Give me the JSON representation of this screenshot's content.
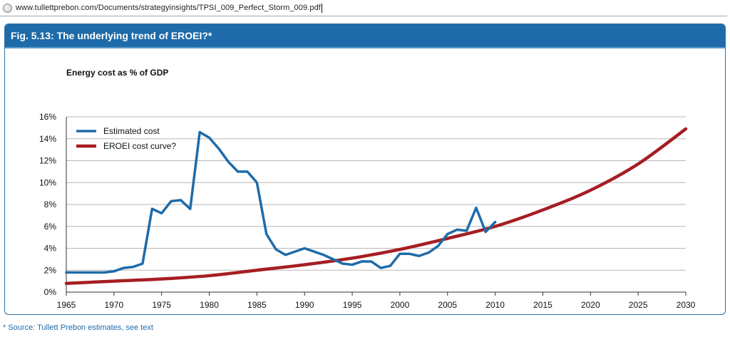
{
  "browser": {
    "url": "www.tullettprebon.com/Documents/strategyinsights/TPSI_009_Perfect_Storm_009.pdf"
  },
  "figure": {
    "title": "Fig. 5.13: The underlying trend of EROEI?*",
    "source_note": "* Source: Tullett Prebon estimates, see text"
  },
  "colors": {
    "header": "#1f6ba9",
    "estimated_cost": "#1f6ba9",
    "eroei_curve": "#a51e22"
  },
  "chart_data": {
    "type": "line",
    "ylabel": "Energy cost as % of GDP",
    "xlim": [
      1965,
      2030
    ],
    "ylim": [
      0,
      16
    ],
    "x_ticks": [
      "1965",
      "1970",
      "1975",
      "1980",
      "1985",
      "1990",
      "1995",
      "2000",
      "2005",
      "2010",
      "2015",
      "2020",
      "2025",
      "2030"
    ],
    "y_ticks": [
      "0%",
      "2%",
      "4%",
      "6%",
      "8%",
      "10%",
      "12%",
      "14%",
      "16%"
    ],
    "grid": "horizontal",
    "legend_position": "top-left",
    "series": [
      {
        "name": "Estimated cost",
        "points": [
          [
            1965,
            1.8
          ],
          [
            1966,
            1.8
          ],
          [
            1967,
            1.8
          ],
          [
            1968,
            1.8
          ],
          [
            1969,
            1.8
          ],
          [
            1970,
            1.9
          ],
          [
            1971,
            2.2
          ],
          [
            1972,
            2.3
          ],
          [
            1973,
            2.6
          ],
          [
            1974,
            7.6
          ],
          [
            1975,
            7.2
          ],
          [
            1976,
            8.3
          ],
          [
            1977,
            8.4
          ],
          [
            1978,
            7.6
          ],
          [
            1979,
            14.6
          ],
          [
            1980,
            14.1
          ],
          [
            1981,
            13.1
          ],
          [
            1982,
            11.9
          ],
          [
            1983,
            11.0
          ],
          [
            1984,
            11.0
          ],
          [
            1985,
            10.0
          ],
          [
            1986,
            5.3
          ],
          [
            1987,
            3.9
          ],
          [
            1988,
            3.4
          ],
          [
            1989,
            3.7
          ],
          [
            1990,
            4.0
          ],
          [
            1991,
            3.7
          ],
          [
            1992,
            3.4
          ],
          [
            1993,
            3.0
          ],
          [
            1994,
            2.6
          ],
          [
            1995,
            2.5
          ],
          [
            1996,
            2.8
          ],
          [
            1997,
            2.8
          ],
          [
            1998,
            2.2
          ],
          [
            1999,
            2.4
          ],
          [
            2000,
            3.5
          ],
          [
            2001,
            3.5
          ],
          [
            2002,
            3.3
          ],
          [
            2003,
            3.6
          ],
          [
            2004,
            4.2
          ],
          [
            2005,
            5.3
          ],
          [
            2006,
            5.7
          ],
          [
            2007,
            5.6
          ],
          [
            2008,
            7.7
          ],
          [
            2009,
            5.5
          ],
          [
            2010,
            6.4
          ]
        ]
      },
      {
        "name": "EROEI cost curve?",
        "points": [
          [
            1965,
            0.8
          ],
          [
            1970,
            1.0
          ],
          [
            1975,
            1.2
          ],
          [
            1980,
            1.5
          ],
          [
            1985,
            2.0
          ],
          [
            1990,
            2.5
          ],
          [
            1995,
            3.1
          ],
          [
            2000,
            3.9
          ],
          [
            2005,
            4.9
          ],
          [
            2010,
            6.0
          ],
          [
            2015,
            7.5
          ],
          [
            2020,
            9.3
          ],
          [
            2025,
            11.7
          ],
          [
            2030,
            14.9
          ]
        ]
      }
    ]
  }
}
